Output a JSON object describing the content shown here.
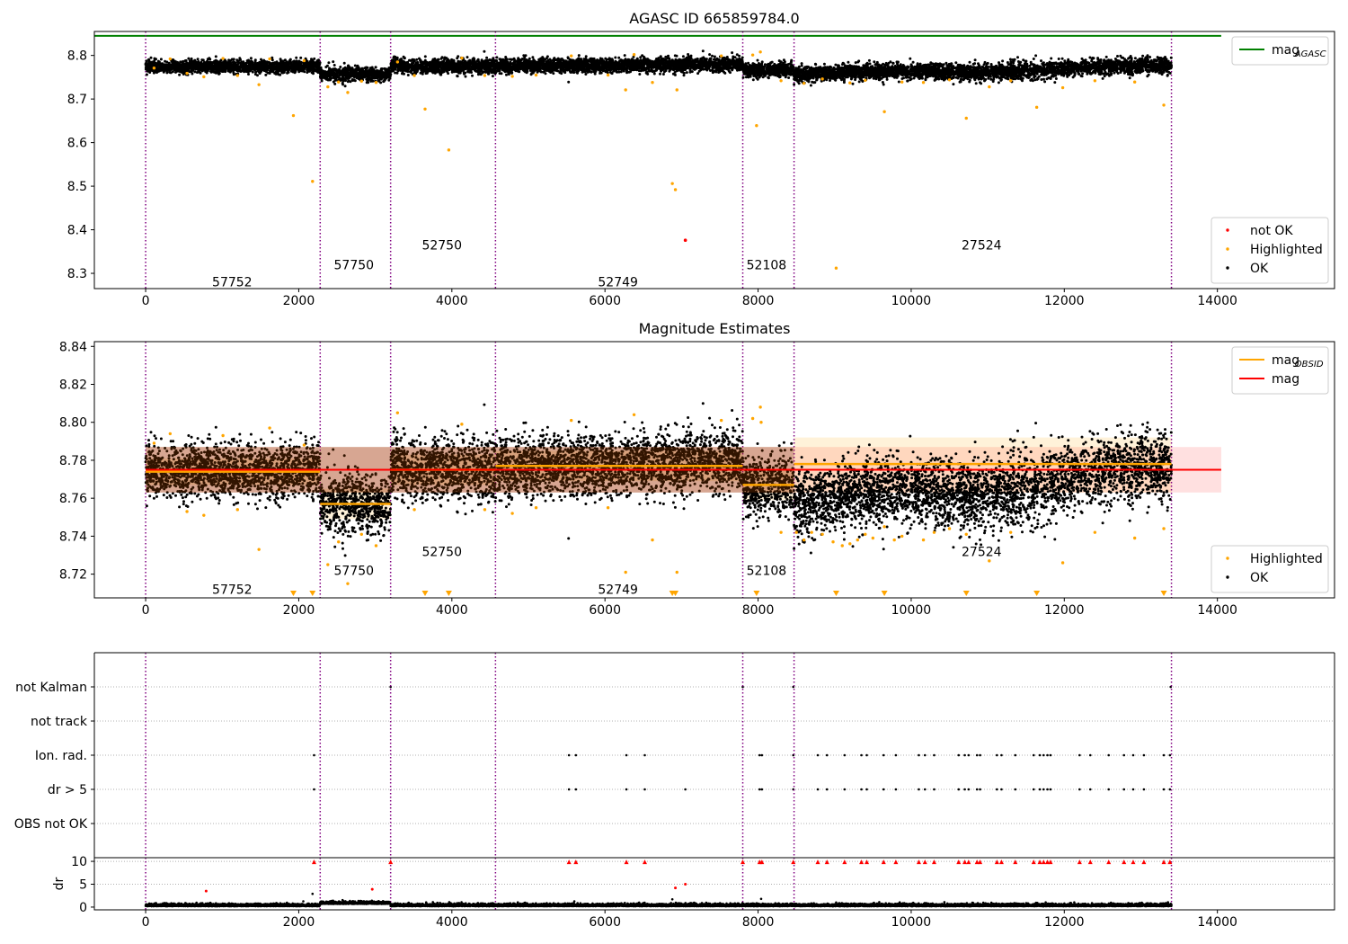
{
  "colors": {
    "ok": "#000000",
    "highlighted": "#ffa500",
    "not_ok": "#ff0000",
    "mag_agasc": "#008000",
    "mag_obsid": "#ffa500",
    "mag": "#ff0000",
    "obs_boundary": "#800080"
  },
  "chart_data": [
    {
      "id": "top",
      "type": "scatter",
      "title": "AGASC ID 665859784.0",
      "xlabel": "",
      "ylabel": "",
      "xlim": [
        -670,
        15530
      ],
      "ylim": [
        8.265,
        8.855
      ],
      "xticks": [
        0,
        2000,
        4000,
        6000,
        8000,
        10000,
        12000,
        14000
      ],
      "yticks": [
        8.3,
        8.4,
        8.5,
        8.6,
        8.7,
        8.8
      ],
      "ytick_labels": [
        "8.3",
        "8.4",
        "8.5",
        "8.6",
        "8.7",
        "8.8"
      ],
      "legends": [
        {
          "position": "upper-right",
          "entries": [
            {
              "label": "mag",
              "sub": "AGASC",
              "kind": "line",
              "color_key": "mag_agasc"
            }
          ]
        },
        {
          "position": "lower-right",
          "entries": [
            {
              "label": "not OK",
              "kind": "dot",
              "color_key": "not_ok"
            },
            {
              "label": "Highlighted",
              "kind": "dot",
              "color_key": "highlighted"
            },
            {
              "label": "OK",
              "kind": "dot",
              "color_key": "ok"
            }
          ]
        }
      ],
      "mag_agasc": 8.845,
      "mag_agasc_x": [
        -670,
        14050
      ],
      "obs_label_y": [
        8.28,
        8.32,
        8.365,
        8.28,
        8.32,
        8.365
      ],
      "highlighted_points": [
        [
          110,
          8.771
        ],
        [
          320,
          8.792
        ],
        [
          540,
          8.759
        ],
        [
          760,
          8.751
        ],
        [
          1010,
          8.793
        ],
        [
          1200,
          8.754
        ],
        [
          1480,
          8.733
        ],
        [
          1620,
          8.792
        ],
        [
          1930,
          8.662
        ],
        [
          2070,
          8.788
        ],
        [
          2180,
          8.511
        ],
        [
          2380,
          8.728
        ],
        [
          2520,
          8.739
        ],
        [
          2640,
          8.715
        ],
        [
          2820,
          8.741
        ],
        [
          3010,
          8.738
        ],
        [
          3290,
          8.785
        ],
        [
          3510,
          8.754
        ],
        [
          3650,
          8.677
        ],
        [
          3960,
          8.583
        ],
        [
          4130,
          8.794
        ],
        [
          4430,
          8.754
        ],
        [
          4790,
          8.752
        ],
        [
          5100,
          8.755
        ],
        [
          5560,
          8.799
        ],
        [
          6040,
          8.755
        ],
        [
          6270,
          8.721
        ],
        [
          6380,
          8.802
        ],
        [
          6620,
          8.738
        ],
        [
          6880,
          8.506
        ],
        [
          6920,
          8.492
        ],
        [
          6940,
          8.721
        ],
        [
          7520,
          8.799
        ],
        [
          7930,
          8.801
        ],
        [
          8030,
          8.808
        ],
        [
          7980,
          8.639
        ],
        [
          8300,
          8.742
        ],
        [
          8600,
          8.736
        ],
        [
          8840,
          8.746
        ],
        [
          9020,
          8.312
        ],
        [
          9200,
          8.737
        ],
        [
          9400,
          8.743
        ],
        [
          9650,
          8.671
        ],
        [
          9880,
          8.739
        ],
        [
          10160,
          8.738
        ],
        [
          10500,
          8.744
        ],
        [
          10720,
          8.656
        ],
        [
          11020,
          8.728
        ],
        [
          11300,
          8.742
        ],
        [
          11640,
          8.681
        ],
        [
          11980,
          8.726
        ],
        [
          12400,
          8.742
        ],
        [
          12920,
          8.739
        ],
        [
          13300,
          8.686
        ]
      ],
      "not_ok_points": [
        [
          7050,
          8.376
        ]
      ]
    },
    {
      "id": "middle",
      "type": "scatter",
      "title": "Magnitude Estimates",
      "xlabel": "",
      "ylabel": "",
      "xlim": [
        -670,
        15530
      ],
      "ylim": [
        8.7075,
        8.8425
      ],
      "xticks": [
        0,
        2000,
        4000,
        6000,
        8000,
        10000,
        12000,
        14000
      ],
      "yticks": [
        8.72,
        8.74,
        8.76,
        8.78,
        8.8,
        8.82,
        8.84
      ],
      "ytick_labels": [
        "8.72",
        "8.74",
        "8.76",
        "8.78",
        "8.80",
        "8.82",
        "8.84"
      ],
      "legends": [
        {
          "position": "upper-right",
          "entries": [
            {
              "label": "mag",
              "sub": "OBSID",
              "kind": "line",
              "color_key": "mag_obsid"
            },
            {
              "label": "mag",
              "kind": "line",
              "color_key": "mag"
            }
          ]
        },
        {
          "position": "lower-right",
          "entries": [
            {
              "label": "Highlighted",
              "kind": "dot",
              "color_key": "highlighted"
            },
            {
              "label": "OK",
              "kind": "dot",
              "color_key": "ok"
            }
          ]
        }
      ],
      "mag": 8.775,
      "mag_band": [
        8.763,
        8.787
      ],
      "mag_x": [
        0,
        14050
      ],
      "obs_label_y": [
        8.712,
        8.722,
        8.732,
        8.712,
        8.722,
        8.732
      ],
      "highlighted_points": [
        [
          110,
          8.789
        ],
        [
          320,
          8.794
        ],
        [
          540,
          8.753
        ],
        [
          760,
          8.751
        ],
        [
          1010,
          8.793
        ],
        [
          1200,
          8.754
        ],
        [
          1480,
          8.733
        ],
        [
          1620,
          8.797
        ],
        [
          2070,
          8.788
        ],
        [
          2380,
          8.725
        ],
        [
          2520,
          8.737
        ],
        [
          2640,
          8.715
        ],
        [
          2820,
          8.741
        ],
        [
          3010,
          8.735
        ],
        [
          3290,
          8.805
        ],
        [
          3510,
          8.754
        ],
        [
          4130,
          8.799
        ],
        [
          4430,
          8.754
        ],
        [
          4790,
          8.752
        ],
        [
          5100,
          8.755
        ],
        [
          5560,
          8.801
        ],
        [
          6040,
          8.755
        ],
        [
          6270,
          8.721
        ],
        [
          6380,
          8.804
        ],
        [
          6620,
          8.738
        ],
        [
          6940,
          8.721
        ],
        [
          7520,
          8.801
        ],
        [
          7930,
          8.802
        ],
        [
          8030,
          8.808
        ],
        [
          8040,
          8.8
        ],
        [
          8300,
          8.742
        ],
        [
          8500,
          8.742
        ],
        [
          8600,
          8.738
        ],
        [
          8700,
          8.742
        ],
        [
          8840,
          8.741
        ],
        [
          8980,
          8.737
        ],
        [
          9100,
          8.735
        ],
        [
          9200,
          8.736
        ],
        [
          9300,
          8.738
        ],
        [
          9400,
          8.741
        ],
        [
          9500,
          8.739
        ],
        [
          9650,
          8.745
        ],
        [
          9780,
          8.738
        ],
        [
          9880,
          8.74
        ],
        [
          10160,
          8.738
        ],
        [
          10300,
          8.742
        ],
        [
          10500,
          8.744
        ],
        [
          10720,
          8.741
        ],
        [
          11020,
          8.727
        ],
        [
          11300,
          8.742
        ],
        [
          11980,
          8.726
        ],
        [
          12400,
          8.742
        ],
        [
          12920,
          8.739
        ],
        [
          13300,
          8.744
        ]
      ],
      "off_scale_markers_x": [
        1930,
        2180,
        3650,
        3960,
        6880,
        6920,
        7980,
        9020,
        9650,
        10720,
        11640,
        13300
      ]
    },
    {
      "id": "flags",
      "type": "scatter",
      "title": "",
      "xlabel": "",
      "ylabel": "",
      "xlim": [
        -670,
        15530
      ],
      "category_labels": [
        "not Kalman",
        "not track",
        "Ion. rad.",
        "dr > 5",
        "OBS not OK"
      ],
      "flag_points": {
        "not Kalman": [
          3200,
          7800,
          8460,
          13390
        ],
        "not track": [],
        "Ion. rad.": [
          2200,
          5530,
          5620,
          6280,
          6520,
          8020,
          8050,
          8460,
          8780,
          8900,
          9130,
          9350,
          9420,
          9640,
          9800,
          10100,
          10180,
          10300,
          10620,
          10700,
          10750,
          10860,
          10900,
          11120,
          11180,
          11360,
          11600,
          11680,
          11730,
          11780,
          11820,
          12200,
          12340,
          12580,
          12780,
          12900,
          13040,
          13300,
          13380
        ],
        "dr > 5": [
          2200,
          5530,
          5620,
          6280,
          6520,
          7050,
          8020,
          8050,
          8460,
          8780,
          8900,
          9130,
          9350,
          9420,
          9640,
          9800,
          10100,
          10180,
          10300,
          10620,
          10700,
          10750,
          10860,
          10900,
          11120,
          11180,
          11360,
          11600,
          11680,
          11730,
          11780,
          11820,
          12200,
          12340,
          12580,
          12780,
          12900,
          13040,
          13300,
          13380
        ],
        "OBS not OK": []
      }
    },
    {
      "id": "dr",
      "type": "scatter",
      "title": "",
      "xlabel": "",
      "ylabel": "dr",
      "xlim": [
        -670,
        15530
      ],
      "ylim": [
        -0.6,
        10.8
      ],
      "yticks": [
        0,
        5,
        10
      ],
      "ytick_labels": [
        "0",
        "5",
        "10"
      ],
      "xticks": [
        0,
        2000,
        4000,
        6000,
        8000,
        10000,
        12000,
        14000
      ],
      "red_markers_x": [
        2200,
        3200,
        5530,
        5620,
        6280,
        6520,
        7800,
        8020,
        8050,
        8460,
        8780,
        8900,
        9130,
        9350,
        9420,
        9640,
        9800,
        10100,
        10180,
        10300,
        10620,
        10700,
        10750,
        10860,
        10900,
        11120,
        11180,
        11360,
        11600,
        11680,
        11730,
        11780,
        11820,
        12200,
        12340,
        12580,
        12780,
        12900,
        13040,
        13300,
        13380
      ],
      "red_points": [
        [
          790,
          3.5
        ],
        [
          2960,
          3.9
        ],
        [
          6920,
          4.2
        ],
        [
          7050,
          5.0
        ]
      ],
      "black_outliers": [
        [
          2180,
          2.9
        ],
        [
          6880,
          1.7
        ],
        [
          8040,
          1.8
        ],
        [
          9020,
          1.0
        ]
      ]
    }
  ],
  "observations": [
    {
      "obsid": "57752",
      "start": 0,
      "end": 2280,
      "label_x": 1130,
      "mean": 8.774,
      "std": 0.007
    },
    {
      "obsid": "57750",
      "start": 2280,
      "end": 3200,
      "label_x": 2720,
      "mean": 8.757,
      "std": 0.008
    },
    {
      "obsid": "52750",
      "start": 3200,
      "end": 4570,
      "label_x": 3870,
      "mean": 8.775,
      "std": 0.008
    },
    {
      "obsid": "52749",
      "start": 4570,
      "end": 7800,
      "label_x": 6170,
      "mean": 8.777,
      "std": 0.008
    },
    {
      "obsid": "52108",
      "start": 7800,
      "end": 8470,
      "label_x": 8110,
      "mean": 8.767,
      "std": 0.008
    },
    {
      "obsid": "27524",
      "start": 8470,
      "end": 13400,
      "label_x": 10920,
      "mean": 8.762,
      "std": 0.009,
      "band_low": 8.763,
      "band_high": 8.792,
      "line": 8.778
    }
  ]
}
